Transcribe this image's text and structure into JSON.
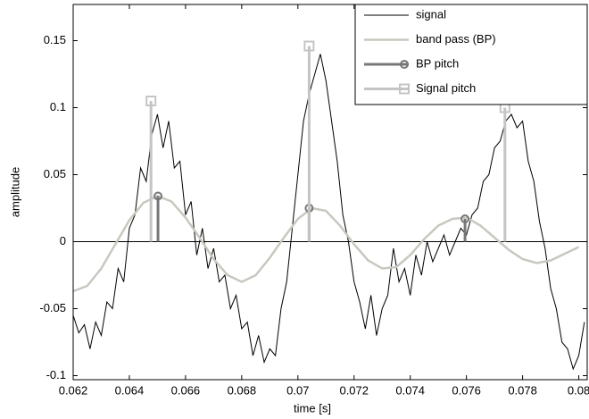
{
  "chart_data": {
    "type": "line",
    "xlabel": "time [s]",
    "ylabel": "amplitude",
    "xlim": [
      0.062,
      0.0803
    ],
    "ylim": [
      -0.103,
      0.177
    ],
    "xticks": [
      0.062,
      0.064,
      0.066,
      0.068,
      0.07,
      0.072,
      0.074,
      0.076,
      0.078,
      0.08
    ],
    "yticks": [
      -0.1,
      -0.05,
      0,
      0.05,
      0.1,
      0.15
    ],
    "legend": "upper right",
    "series": [
      {
        "name": "signal",
        "color": "#000000",
        "style": "line",
        "marker": "none",
        "x": [
          0.062,
          0.0622,
          0.0624,
          0.0626,
          0.0628,
          0.063,
          0.0632,
          0.0634,
          0.0636,
          0.0638,
          0.064,
          0.0642,
          0.0644,
          0.0646,
          0.0648,
          0.065,
          0.0652,
          0.0654,
          0.0656,
          0.0658,
          0.066,
          0.0662,
          0.0664,
          0.0666,
          0.0668,
          0.067,
          0.0672,
          0.0674,
          0.0676,
          0.0678,
          0.068,
          0.0682,
          0.0684,
          0.0686,
          0.0688,
          0.069,
          0.0692,
          0.0694,
          0.0696,
          0.0698,
          0.07,
          0.0702,
          0.0704,
          0.0706,
          0.0708,
          0.071,
          0.0712,
          0.0714,
          0.0716,
          0.0718,
          0.072,
          0.0722,
          0.0724,
          0.0726,
          0.0728,
          0.073,
          0.0732,
          0.0734,
          0.0736,
          0.0738,
          0.074,
          0.0742,
          0.0744,
          0.0746,
          0.0748,
          0.075,
          0.0752,
          0.0754,
          0.0756,
          0.0758,
          0.076,
          0.0762,
          0.0764,
          0.0766,
          0.0768,
          0.077,
          0.0772,
          0.0774,
          0.0776,
          0.0778,
          0.078,
          0.0782,
          0.0784,
          0.0786,
          0.0788,
          0.079,
          0.0792,
          0.0794,
          0.0796,
          0.0798,
          0.08,
          0.0802
        ],
        "values": [
          -0.055,
          -0.068,
          -0.062,
          -0.08,
          -0.06,
          -0.07,
          -0.045,
          -0.05,
          -0.02,
          -0.03,
          0.01,
          0.02,
          0.055,
          0.045,
          0.08,
          0.095,
          0.07,
          0.09,
          0.055,
          0.06,
          0.02,
          0.03,
          -0.01,
          0.01,
          -0.02,
          -0.005,
          -0.03,
          -0.025,
          -0.05,
          -0.04,
          -0.065,
          -0.06,
          -0.085,
          -0.07,
          -0.09,
          -0.08,
          -0.085,
          -0.05,
          -0.03,
          0.01,
          0.05,
          0.09,
          0.11,
          0.125,
          0.14,
          0.12,
          0.09,
          0.06,
          0.02,
          0.0,
          -0.03,
          -0.045,
          -0.065,
          -0.04,
          -0.07,
          -0.05,
          -0.04,
          -0.005,
          -0.03,
          -0.02,
          -0.04,
          -0.01,
          -0.025,
          0.0,
          -0.015,
          -0.005,
          0.005,
          -0.01,
          0.0,
          0.01,
          0.005,
          0.02,
          0.025,
          0.045,
          0.05,
          0.07,
          0.075,
          0.09,
          0.095,
          0.085,
          0.09,
          0.06,
          0.045,
          0.015,
          -0.005,
          -0.035,
          -0.05,
          -0.075,
          -0.08,
          -0.095,
          -0.085,
          -0.06
        ]
      },
      {
        "name": "band pass (BP)",
        "color": "#c8c8c0",
        "style": "line",
        "marker": "none",
        "x": [
          0.062,
          0.0625,
          0.063,
          0.0635,
          0.064,
          0.0645,
          0.065,
          0.0655,
          0.066,
          0.0665,
          0.067,
          0.0675,
          0.068,
          0.0685,
          0.069,
          0.0695,
          0.07,
          0.0705,
          0.071,
          0.0715,
          0.072,
          0.0725,
          0.073,
          0.0735,
          0.074,
          0.0745,
          0.075,
          0.0755,
          0.076,
          0.0765,
          0.077,
          0.0775,
          0.078,
          0.0785,
          0.079,
          0.0795,
          0.08
        ],
        "values": [
          -0.037,
          -0.033,
          -0.02,
          -0.002,
          0.016,
          0.029,
          0.034,
          0.03,
          0.018,
          0.003,
          -0.013,
          -0.025,
          -0.03,
          -0.025,
          -0.012,
          0.003,
          0.017,
          0.025,
          0.023,
          0.012,
          -0.002,
          -0.014,
          -0.02,
          -0.019,
          -0.01,
          0.002,
          0.012,
          0.017,
          0.018,
          0.012,
          0.003,
          -0.006,
          -0.013,
          -0.016,
          -0.014,
          -0.009,
          -0.004
        ]
      },
      {
        "name": "BP pitch",
        "color": "#777777",
        "style": "stem",
        "marker": "circle",
        "x": [
          0.06502,
          0.0704,
          0.07595
        ],
        "values": [
          0.034,
          0.025,
          0.017
        ]
      },
      {
        "name": "Signal pitch",
        "color": "#c4c4c4",
        "style": "stem",
        "marker": "square",
        "x": [
          0.06477,
          0.0704,
          0.07737
        ],
        "values": [
          0.105,
          0.146,
          0.1
        ]
      }
    ]
  }
}
